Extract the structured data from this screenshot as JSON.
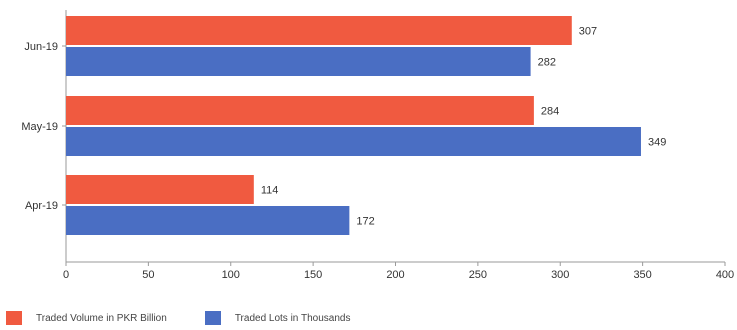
{
  "chart_data": {
    "type": "bar",
    "orientation": "horizontal",
    "categories": [
      "Jun-19",
      "May-19",
      "Apr-19"
    ],
    "series": [
      {
        "name": "Traded Volume in PKR Billion",
        "values": [
          307,
          284,
          114
        ],
        "color": "#f05a40"
      },
      {
        "name": "Traded Lots in Thousands",
        "values": [
          282,
          349,
          172
        ],
        "color": "#4a6ec3"
      }
    ],
    "data_labels": [
      "307",
      "282",
      "284",
      "349",
      "114",
      "172"
    ],
    "xticks": [
      "0",
      "50",
      "100",
      "150",
      "200",
      "250",
      "300",
      "350",
      "400"
    ],
    "xlim": [
      0,
      400
    ],
    "grid": false,
    "legend_position": "bottom-left",
    "title": "",
    "xlabel": "",
    "ylabel": ""
  }
}
